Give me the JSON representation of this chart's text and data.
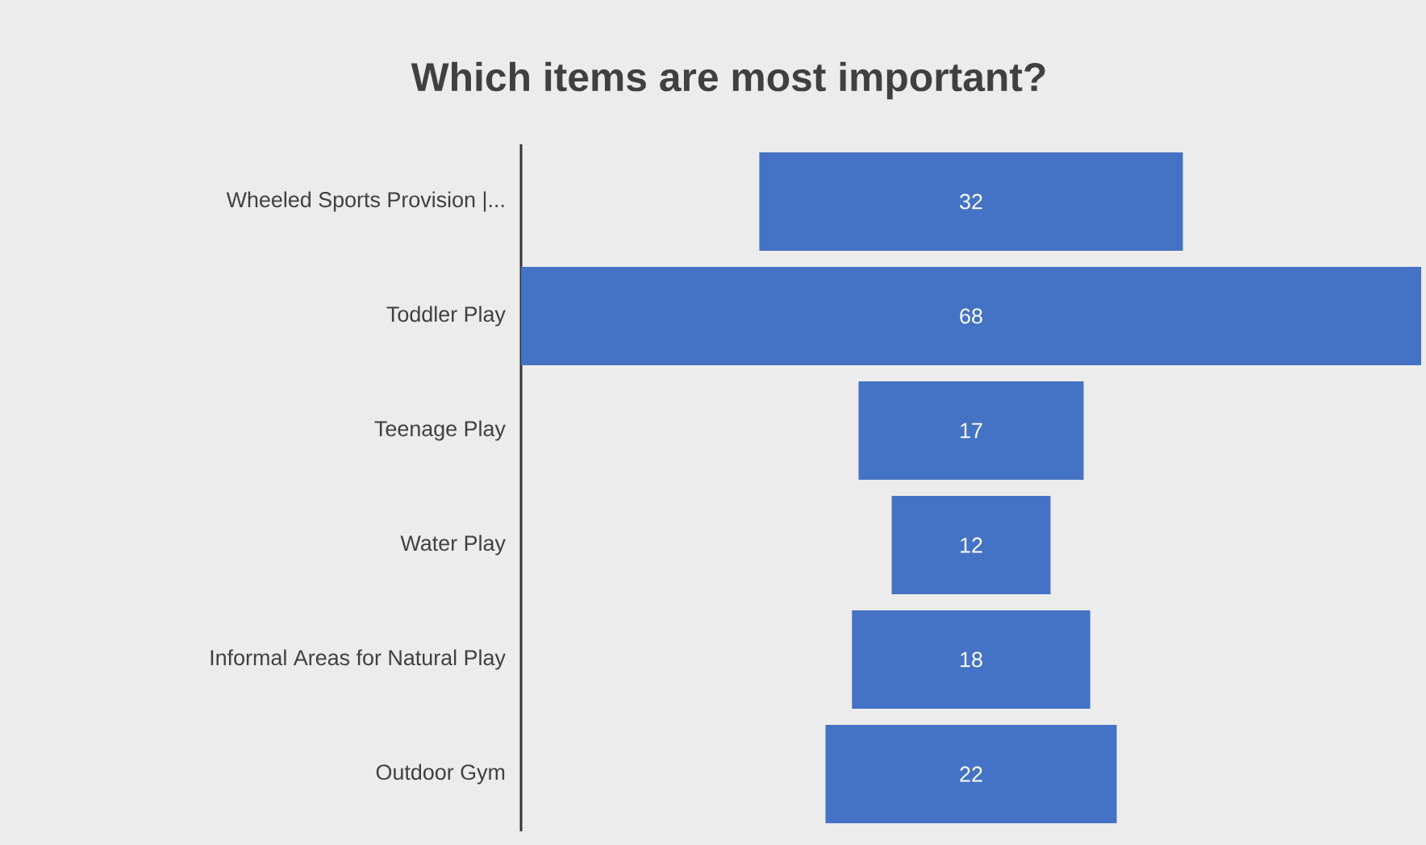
{
  "chart_data": {
    "type": "other",
    "title": "Which items are most important?",
    "categories": [
      "Wheeled Sports Provision |...",
      "Toddler Play",
      "Teenage Play",
      "Water Play",
      "Informal Areas for Natural Play",
      "Outdoor Gym"
    ],
    "values": [
      32,
      68,
      17,
      12,
      18,
      22
    ],
    "color": "#4472c4",
    "data_labels": true
  }
}
